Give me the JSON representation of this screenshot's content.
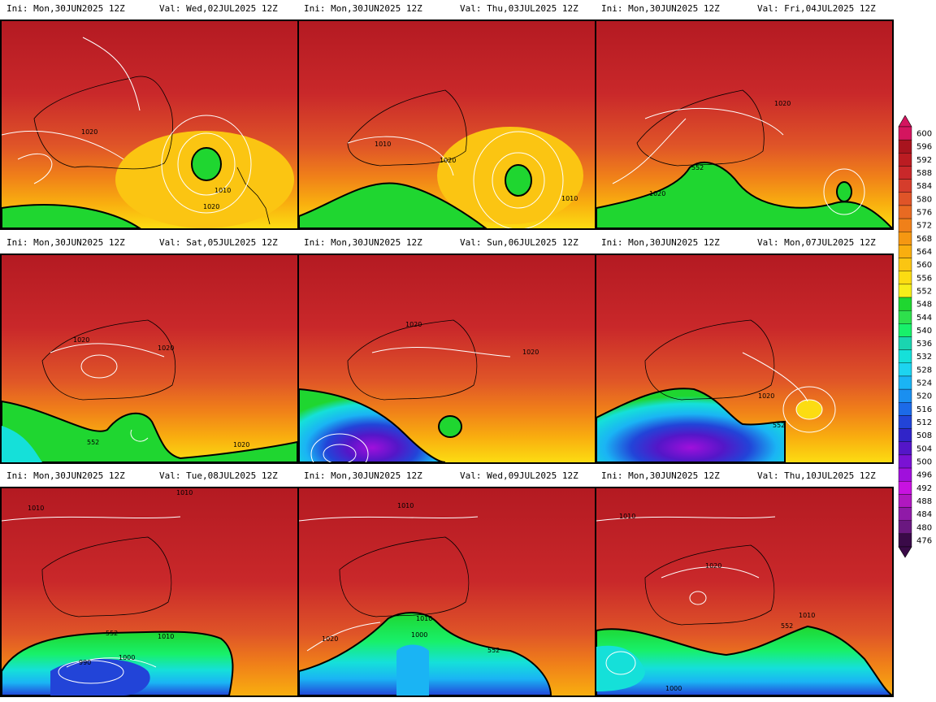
{
  "panels": [
    {
      "ini": "Ini: Mon,30JUN2025 12Z",
      "val": "Val: Wed,02JUL2025 12Z",
      "labels": [
        "1020",
        "1010",
        "1020"
      ]
    },
    {
      "ini": "Ini: Mon,30JUN2025 12Z",
      "val": "Val: Thu,03JUL2025 12Z",
      "labels": [
        "1010",
        "1020",
        "1010"
      ]
    },
    {
      "ini": "Ini: Mon,30JUN2025 12Z",
      "val": "Val: Fri,04JUL2025 12Z",
      "labels": [
        "1020",
        "552",
        "1020"
      ]
    },
    {
      "ini": "Ini: Mon,30JUN2025 12Z",
      "val": "Val: Sat,05JUL2025 12Z",
      "labels": [
        "1020",
        "1020",
        "552",
        "1020"
      ]
    },
    {
      "ini": "Ini: Mon,30JUN2025 12Z",
      "val": "Val: Sun,06JUL2025 12Z",
      "labels": [
        "1020",
        "1020"
      ]
    },
    {
      "ini": "Ini: Mon,30JUN2025 12Z",
      "val": "Val: Mon,07JUL2025 12Z",
      "labels": [
        "1020",
        "552"
      ]
    },
    {
      "ini": "Ini: Mon,30JUN2025 12Z",
      "val": "Val: Tue,08JUL2025 12Z",
      "labels": [
        "1010",
        "1010",
        "552",
        "1010",
        "1000",
        "990"
      ]
    },
    {
      "ini": "Ini: Mon,30JUN2025 12Z",
      "val": "Val: Wed,09JUL2025 12Z",
      "labels": [
        "1010",
        "1010",
        "1000",
        "1020",
        "552"
      ]
    },
    {
      "ini": "Ini: Mon,30JUN2025 12Z",
      "val": "Val: Thu,10JUL2025 12Z",
      "labels": [
        "1010",
        "1020",
        "552",
        "1010",
        "1000"
      ]
    }
  ],
  "colorbar": {
    "levels": [
      "600",
      "596",
      "592",
      "588",
      "584",
      "580",
      "576",
      "572",
      "568",
      "564",
      "560",
      "556",
      "552",
      "548",
      "544",
      "540",
      "536",
      "532",
      "528",
      "524",
      "520",
      "516",
      "512",
      "508",
      "504",
      "500",
      "496",
      "492",
      "488",
      "484",
      "480",
      "476"
    ],
    "colors": [
      "#d4155f",
      "#a8141e",
      "#bb1c22",
      "#c9282a",
      "#d53d2c",
      "#df5428",
      "#e86a22",
      "#f08019",
      "#f59712",
      "#f9ae0f",
      "#fbc512",
      "#fcdc12",
      "#f6ee1a",
      "#1fd630",
      "#2ee04c",
      "#18f06a",
      "#1ad5b0",
      "#15e0d9",
      "#1dd4f0",
      "#1ab4f4",
      "#1a8ff0",
      "#1c6ae8",
      "#2244d8",
      "#3024c8",
      "#5416c8",
      "#7a12d4",
      "#a010dc",
      "#c812e0",
      "#b018c0",
      "#901aa8",
      "#6a1880",
      "#3a0a48"
    ]
  }
}
